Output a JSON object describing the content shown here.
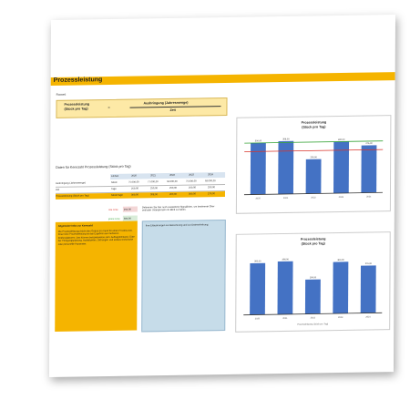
{
  "banner": {
    "title": "Prozessleistung"
  },
  "formula": {
    "label": "Formel:",
    "left_line1": "Prozessleistung",
    "left_line2": "(Stück pro Tag)",
    "equals": "=",
    "right_top": "Ausbringung (Jahresmenge)",
    "right_bottom": "Zeit"
  },
  "table": {
    "caption": "Daten für Kennzahl Prozessleistung (Stück pro Tag)",
    "header": [
      "Einheit",
      "2020",
      "2021",
      "2022",
      "2023",
      "2024"
    ],
    "rows": [
      {
        "label": "Ausbringung (Jahresmenge)",
        "unit": "Stück",
        "values": [
          "75.000,00",
          "77.000,00",
          "50.000,00",
          "75.000,00",
          "69.000,00"
        ]
      },
      {
        "label": "Zeit",
        "unit": "Tage",
        "values": [
          "250,00",
          "250,00",
          "250,00",
          "250,00",
          "250,00"
        ]
      },
      {
        "label": "Prozessleistung (Stück pro Tag)",
        "unit": "Stück/Tage",
        "values": [
          "300,00",
          "308,00",
          "200,00",
          "300,00",
          "276,00"
        ]
      }
    ]
  },
  "thresholds": {
    "red_label": "rote Linie",
    "red_value": "250,00",
    "green_label": "grüne Linie",
    "green_value": "300,00",
    "note": "Definieren Sie hier noch zusätzliche Signallinien, um bestimmte Ober- und/oder Untergrenzen im Blick zu haben."
  },
  "info_orange": {
    "title": "Allgemeine Infos zur Kennzahl:",
    "text": "Die Prozessleistung drückt den Output pro Input für einen Prozess aus. Eine hohe Prozessleistung ist das Ergebnis aus mehreren Einflussfaktoren. Das können beispielsweise sein: Auftragsbestand, Güte der Fertigungsplanung, Ausfallzeiten, Störungen und andere technische oder personelle Parameter."
  },
  "info_blue": {
    "text": "Ihre Erläuterungen zur Berechnung und zur Datenerhebung:"
  },
  "chart_top": {
    "title1": "Prozessleistung",
    "title2": "(Stück pro Tag)"
  },
  "chart_bottom": {
    "title1": "Prozessleistung",
    "title2": "(Stück pro Tag)",
    "legend": "Prozessleistung (Stück pro Tag)"
  },
  "chart_data": [
    {
      "type": "bar",
      "title": "Prozessleistung (Stück pro Tag)",
      "categories": [
        "2020",
        "2021",
        "2022",
        "2023",
        "2024"
      ],
      "values": [
        300,
        308,
        200,
        300,
        276
      ],
      "value_labels": [
        "300,00",
        "308,00",
        "200,00",
        "300,00",
        "276,00"
      ],
      "reference_lines": [
        {
          "name": "rote Linie",
          "value": 250,
          "color": "#d9342b"
        },
        {
          "name": "grüne Linie",
          "value": 300,
          "color": "#3aa53a"
        }
      ],
      "ylim": [
        0,
        350
      ],
      "bar_color": "#4472c4"
    },
    {
      "type": "bar",
      "title": "Prozessleistung (Stück pro Tag)",
      "categories": [
        "2020",
        "2021",
        "2022",
        "2023",
        "2024"
      ],
      "values": [
        300,
        308,
        200,
        300,
        276
      ],
      "value_labels": [
        "300,00",
        "308,00",
        "200,00",
        "300,00",
        "276,00"
      ],
      "ylim": [
        0,
        350
      ],
      "bar_color": "#4472c4"
    }
  ],
  "colors": {
    "accent": "#f5b400",
    "bar": "#4472c4",
    "formula_bg": "#fde9a6",
    "info_blue": "#c6dce9",
    "red": "#d9342b",
    "green": "#3aa53a"
  }
}
